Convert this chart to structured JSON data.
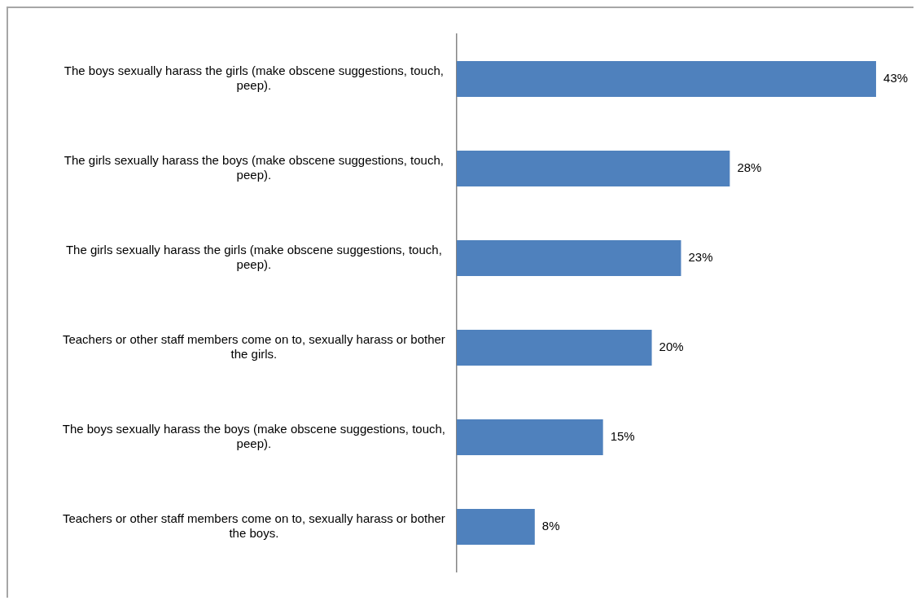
{
  "chart_data": {
    "type": "bar",
    "orientation": "horizontal",
    "categories": [
      "The boys sexually harass the girls (make obscene suggestions, touch, peep).",
      "The girls sexually harass the boys (make obscene suggestions, touch, peep).",
      "The girls sexually harass the girls (make obscene suggestions, touch, peep).",
      "Teachers or other staff members come on to, sexually harass or bother the girls.",
      "The boys sexually harass the boys (make obscene suggestions, touch, peep).",
      "Teachers or other staff members come on to, sexually harass or bother the boys."
    ],
    "values": [
      43,
      28,
      23,
      20,
      15,
      8
    ],
    "value_labels": [
      "43%",
      "28%",
      "23%",
      "20%",
      "15%",
      "8%"
    ],
    "color": "#4f81bd",
    "tick_labels": "y"
  }
}
